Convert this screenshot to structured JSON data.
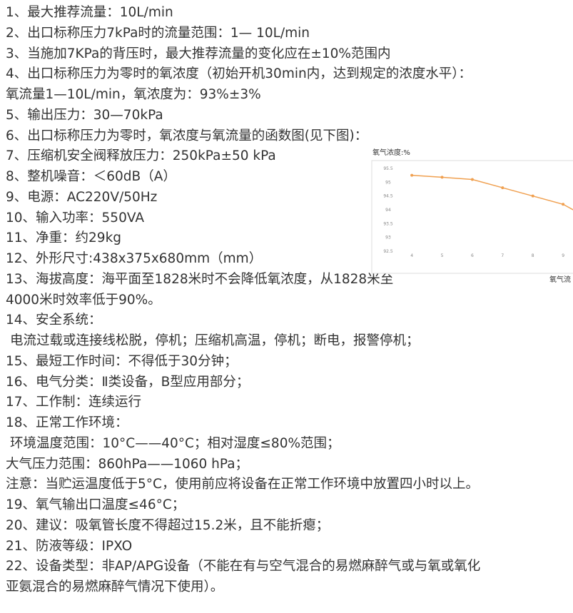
{
  "lines": [
    "1、最大推荐流量：10L/min",
    "2、出口标称压力7kPa时的流量范围：1— 10L/min",
    "3、当施加7KPa的背压时，最大推荐流量的变化应在±10%范围内",
    "4、出口标称压力为零时的氧浓度（初始开机30min内，达到规定的浓度水平）：",
    "氧流量1—10L/min，氧浓度为：93%±3%",
    "5、输出压力：30—70kPa",
    "6、出口标称压力为零时，氧浓度与氧流量的函数图(见下图)：",
    "7、压缩机安全阀释放压力：250kPa±50 kPa",
    "8、整机噪音：＜60dB（A）",
    "9、电源：AC220V/50Hz",
    "10、输入功率：550VA",
    "11、净重：约29kg",
    "12、外形尺寸:438x375x680mm（mm）",
    "13、海拔高度：海平面至1828米时不会降低氧浓度，从1828米至",
    "4000米时效率低于90%。",
    "14、安全系统：",
    "电流过载或连接线松脱，停机；压缩机高温，停机；断电，报警停机；",
    "15、最短工作时间：不得低于30分钟；",
    "16、电气分类：Ⅱ类设备，B型应用部分；",
    "17、工作制：连续运行",
    "18、正常工作环境：",
    "环境温度范围：10°C——40°C；相对湿度≤80%范围；",
    "大气压力范围：860hPa——1060 hPa；",
    "注意：当贮运温度低于5°C，使用前应将设备在正常工作环境中放置四小时以上。",
    "19、氧气输出口温度≤46°C；",
    "20、建议：吸氧管长度不得超过15.2米，且不能折瘪；",
    "21、防液等级：IPXO",
    "22、设备类型：非AP/APG设备（不能在有与空气混合的易燃麻醉气或与氧或氧化",
    "亚氨混合的易燃麻醉气情况下使用）。"
  ],
  "chart_data": {
    "type": "line",
    "ylabel": "氧气浓度:%",
    "xlabel": "氧气流",
    "x": [
      4,
      5,
      6,
      7,
      8,
      9,
      10
    ],
    "series": [
      {
        "name": "氧气浓度",
        "color": "#f0a050",
        "values": [
          95.25,
          95.18,
          95.1,
          94.8,
          94.5,
          94.2,
          93.6
        ]
      }
    ],
    "xlim": [
      2.7,
      10
    ],
    "xticks": [
      4,
      5,
      6,
      7,
      8,
      9
    ],
    "ylim": [
      92.5,
      95.5
    ],
    "yticks": [
      92.5,
      93,
      93.5,
      94,
      94.5,
      95,
      95.5
    ]
  }
}
